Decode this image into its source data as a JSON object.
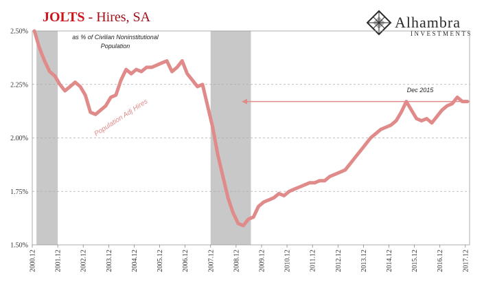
{
  "header": {
    "title_strong": "JOLTS",
    "title_rest": " - Hires, SA"
  },
  "logo": {
    "name": "Alhambra",
    "sub": "INVESTMENTS",
    "icon": "diamond-lattice-icon"
  },
  "colors": {
    "series": "#e08a8a",
    "recession": "#c8c8c8",
    "title": "#d0121b",
    "arrow": "#e08a8a"
  },
  "chart_data": {
    "type": "line",
    "title": "JOLTS - Hires, SA",
    "subtitle": "as % of Civilian Noninstitutional Population",
    "ylim": [
      1.5,
      2.5
    ],
    "xlim": [
      2000.917,
      2018.083
    ],
    "y_ticks": [
      "1.50%",
      "1.75%",
      "2.00%",
      "2.25%",
      "2.50%"
    ],
    "y_tick_values": [
      1.5,
      1.75,
      2.0,
      2.25,
      2.5
    ],
    "x_ticks": [
      "2000.12",
      "2001.12",
      "2002.12",
      "2003.12",
      "2004.12",
      "2005.12",
      "2006.12",
      "2007.12",
      "2008.12",
      "2009.12",
      "2010.12",
      "2011.12",
      "2012.12",
      "2013.12",
      "2014.12",
      "2015.12",
      "2016.12",
      "2017.12"
    ],
    "x_tick_values": [
      2000.917,
      2001.917,
      2002.917,
      2003.917,
      2004.917,
      2005.917,
      2006.917,
      2007.917,
      2008.917,
      2009.917,
      2010.917,
      2011.917,
      2012.917,
      2013.917,
      2014.917,
      2015.917,
      2016.917,
      2017.917
    ],
    "grid": true,
    "legend": "none",
    "recessions": [
      [
        2001.083,
        2001.917
      ],
      [
        2007.917,
        2009.5
      ]
    ],
    "series": [
      {
        "label": "Population Adj Hires",
        "x": [
          2001.0,
          2001.2,
          2001.4,
          2001.6,
          2001.8,
          2002.0,
          2002.2,
          2002.4,
          2002.6,
          2002.8,
          2003.0,
          2003.2,
          2003.4,
          2003.6,
          2003.8,
          2004.0,
          2004.2,
          2004.4,
          2004.6,
          2004.8,
          2005.0,
          2005.2,
          2005.4,
          2005.6,
          2005.8,
          2006.0,
          2006.2,
          2006.4,
          2006.6,
          2006.8,
          2007.0,
          2007.2,
          2007.4,
          2007.6,
          2007.8,
          2008.0,
          2008.2,
          2008.4,
          2008.6,
          2008.8,
          2009.0,
          2009.2,
          2009.4,
          2009.6,
          2009.8,
          2010.0,
          2010.2,
          2010.4,
          2010.6,
          2010.8,
          2011.0,
          2011.2,
          2011.4,
          2011.6,
          2011.8,
          2012.0,
          2012.2,
          2012.4,
          2012.6,
          2012.8,
          2013.0,
          2013.2,
          2013.4,
          2013.6,
          2013.8,
          2014.0,
          2014.2,
          2014.4,
          2014.6,
          2014.8,
          2015.0,
          2015.2,
          2015.4,
          2015.6,
          2015.8,
          2016.0,
          2016.2,
          2016.4,
          2016.6,
          2016.8,
          2017.0,
          2017.2,
          2017.4,
          2017.6,
          2017.8,
          2018.0
        ],
        "y": [
          2.5,
          2.42,
          2.36,
          2.31,
          2.29,
          2.25,
          2.22,
          2.24,
          2.26,
          2.24,
          2.2,
          2.12,
          2.11,
          2.13,
          2.15,
          2.19,
          2.2,
          2.27,
          2.32,
          2.3,
          2.32,
          2.31,
          2.33,
          2.33,
          2.34,
          2.35,
          2.36,
          2.31,
          2.33,
          2.36,
          2.3,
          2.27,
          2.24,
          2.25,
          2.15,
          2.05,
          1.92,
          1.82,
          1.72,
          1.65,
          1.6,
          1.59,
          1.62,
          1.63,
          1.68,
          1.7,
          1.71,
          1.72,
          1.74,
          1.73,
          1.75,
          1.76,
          1.77,
          1.78,
          1.79,
          1.79,
          1.8,
          1.8,
          1.82,
          1.83,
          1.84,
          1.85,
          1.88,
          1.91,
          1.94,
          1.97,
          2.0,
          2.02,
          2.04,
          2.05,
          2.06,
          2.08,
          2.12,
          2.17,
          2.13,
          2.09,
          2.08,
          2.09,
          2.07,
          2.1,
          2.13,
          2.15,
          2.16,
          2.19,
          2.17,
          2.17
        ]
      }
    ],
    "annotations": {
      "subtitle_line1": "as % of Civilian Noninstitutional",
      "subtitle_line2": "Population",
      "series_label": "Population Adj Hires",
      "marker_label": "Dec 2015",
      "marker_level": 2.17
    }
  }
}
